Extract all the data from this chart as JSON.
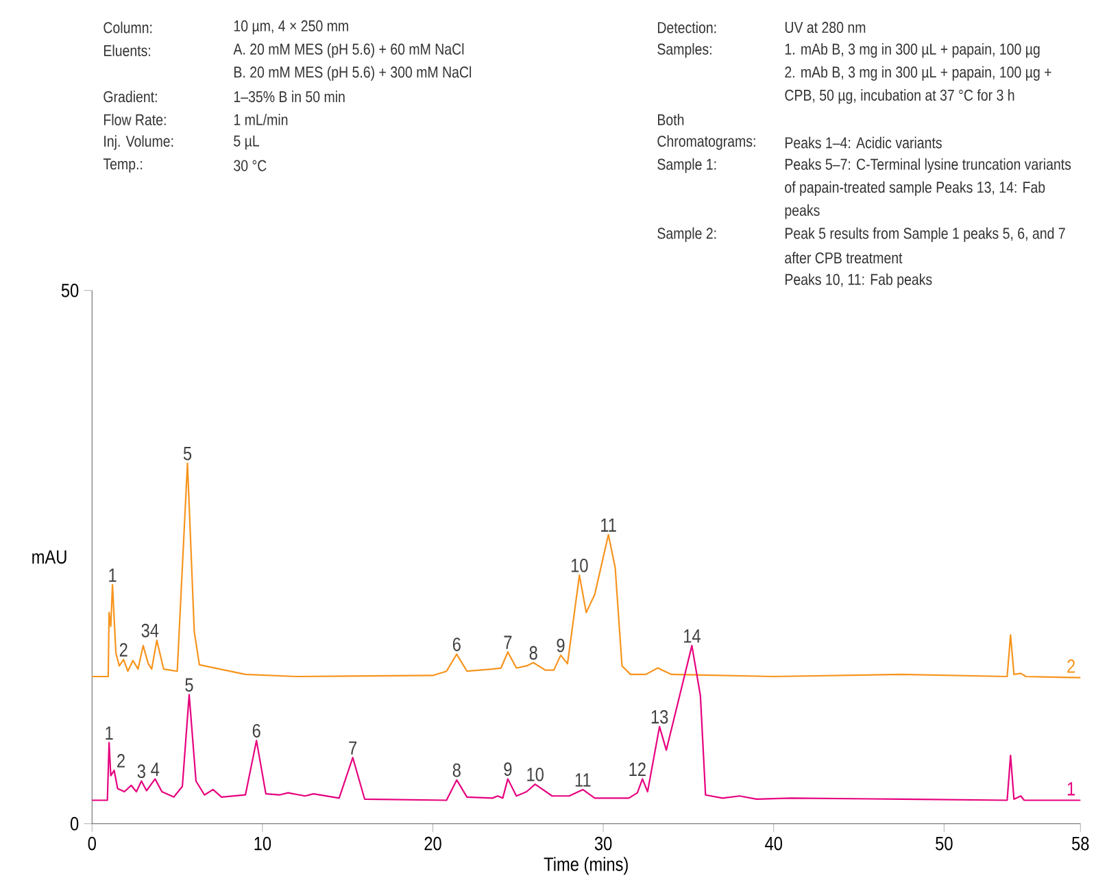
{
  "chart_data": {
    "type": "line",
    "xlabel": "Time (mins)",
    "ylabel": "mAU",
    "xlim": [
      0,
      58
    ],
    "xticks": [
      0,
      10,
      20,
      30,
      40,
      50,
      58
    ],
    "ylim": [
      0,
      50
    ],
    "yticks": [
      0,
      50
    ],
    "series": [
      {
        "name": "2",
        "color": "#f7941d",
        "x": [
          0,
          0.95,
          1.0,
          1.1,
          1.2,
          1.4,
          1.6,
          1.85,
          2.1,
          2.4,
          2.7,
          3.0,
          3.3,
          3.5,
          3.8,
          4.2,
          5.0,
          5.6,
          6.0,
          6.3,
          7.5,
          9.0,
          12,
          20.0,
          20.8,
          21.4,
          22.0,
          23.5,
          24.0,
          24.4,
          24.9,
          25.5,
          25.9,
          26.6,
          27.1,
          27.5,
          27.9,
          28.6,
          29.0,
          29.5,
          30.3,
          30.7,
          31.1,
          31.6,
          32.5,
          33.2,
          34,
          40,
          47.5,
          53.7,
          53.9,
          54.1,
          54.5,
          54.8,
          58
        ],
        "values": [
          13.8,
          13.8,
          19.8,
          18.5,
          22.4,
          16.0,
          14.8,
          15.4,
          14.3,
          15.3,
          14.5,
          16.7,
          15.0,
          14.5,
          17.2,
          14.5,
          14.3,
          33.8,
          18,
          14.9,
          14.5,
          14.0,
          13.8,
          13.9,
          14.3,
          15.9,
          14.3,
          14.5,
          14.6,
          16.1,
          14.6,
          14.8,
          15.1,
          14.4,
          14.4,
          15.8,
          15.0,
          23.3,
          19.8,
          21.5,
          27.1,
          24,
          14.8,
          14.0,
          14.0,
          14.6,
          14.0,
          13.8,
          14.0,
          13.8,
          17.7,
          14.0,
          14.1,
          13.8,
          13.7
        ]
      },
      {
        "name": "1",
        "color": "#e6007e",
        "x": [
          0,
          0.9,
          1.0,
          1.1,
          1.3,
          1.5,
          1.9,
          2.3,
          2.6,
          2.9,
          3.2,
          3.7,
          4.1,
          4.8,
          5.3,
          5.7,
          6.1,
          6.6,
          7.1,
          7.6,
          9.0,
          9.65,
          10.2,
          11.0,
          11.5,
          12.5,
          13.0,
          14.5,
          15.3,
          16.0,
          20.8,
          21.4,
          22.0,
          23.5,
          23.8,
          24.1,
          24.4,
          24.9,
          25.5,
          26.0,
          27.0,
          28.0,
          28.8,
          29.5,
          31.5,
          32.0,
          32.3,
          32.6,
          33.3,
          33.7,
          35.2,
          35.7,
          36.0,
          37.0,
          38.0,
          39,
          41,
          47.5,
          53.7,
          53.9,
          54.1,
          54.5,
          54.7,
          58
        ],
        "values": [
          2.2,
          2.2,
          7.6,
          4.5,
          5.0,
          3.3,
          3.0,
          3.6,
          3.0,
          4.0,
          3.1,
          4.2,
          3.0,
          2.5,
          3.5,
          12.1,
          4.0,
          2.7,
          3.2,
          2.5,
          2.7,
          7.8,
          2.8,
          2.7,
          2.9,
          2.6,
          2.8,
          2.4,
          6.2,
          2.3,
          2.2,
          4.1,
          2.5,
          2.4,
          2.6,
          2.4,
          4.2,
          2.6,
          3.0,
          3.7,
          2.6,
          2.6,
          3.2,
          2.4,
          2.4,
          2.9,
          4.2,
          3.0,
          9.1,
          6.9,
          16.7,
          12,
          2.7,
          2.4,
          2.6,
          2.3,
          2.4,
          2.3,
          2.2,
          6.4,
          2.3,
          2.6,
          2.2,
          2.2
        ]
      }
    ],
    "annotations": [
      "Column:",
      "10 µm, 4 × 250 mm",
      "Eluents:",
      "A. 20 mM MES (pH 5.6) + 60 mM NaCl",
      "B. 20 mM MES (pH 5.6) + 300 mM NaCl",
      "Gradient:",
      "1–35% B in 50 min",
      "Flow Rate:",
      "1 mL/min",
      "Inj. Volume:",
      "5 µL",
      "Temp.:",
      "30 °C",
      "Detection:",
      "UV at 280 nm",
      "Samples:",
      "1. mAb B, 3 mg in 300 µL + papain, 100 µg",
      "2. mAb B, 3 mg in 300 µL + papain, 100 µg +",
      "CPB, 50 µg, incubation at 37 °C for 3 h",
      "Both",
      "Chromatograms:",
      "Peaks 1–4: Acidic variants",
      "Sample 1:",
      "Peaks 5–7: C-Terminal lysine truncation variants",
      "of papain-treated sample Peaks 13, 14: Fab",
      "peaks",
      "Sample 2:",
      "Peak 5 results from Sample 1 peaks 5, 6, and 7",
      "after CPB treatment",
      "Peaks 10, 11: Fab peaks",
      {
        "text": "1",
        "x": 1.2,
        "y": 22.4
      },
      {
        "text": "2",
        "x": 1.85,
        "y": 15.4
      },
      {
        "text": "34",
        "x": 3.4,
        "y": 17.2
      },
      {
        "text": "5",
        "x": 5.6,
        "y": 33.8
      },
      {
        "text": "6",
        "x": 21.4,
        "y": 15.9
      },
      {
        "text": "7",
        "x": 24.4,
        "y": 16.1
      },
      {
        "text": "8",
        "x": 25.9,
        "y": 15.1
      },
      {
        "text": "9",
        "x": 27.5,
        "y": 15.8
      },
      {
        "text": "10",
        "x": 28.6,
        "y": 23.3
      },
      {
        "text": "11",
        "x": 30.3,
        "y": 27.1
      },
      {
        "text": "1",
        "x": 1.0,
        "y": 7.6
      },
      {
        "text": "2",
        "x": 1.7,
        "y": 5.0
      },
      {
        "text": "3",
        "x": 2.9,
        "y": 4.0
      },
      {
        "text": "4",
        "x": 3.7,
        "y": 4.2
      },
      {
        "text": "5",
        "x": 5.7,
        "y": 12.1
      },
      {
        "text": "6",
        "x": 9.65,
        "y": 7.8
      },
      {
        "text": "7",
        "x": 15.3,
        "y": 6.2
      },
      {
        "text": "8",
        "x": 21.4,
        "y": 4.1
      },
      {
        "text": "9",
        "x": 24.4,
        "y": 4.2
      },
      {
        "text": "10",
        "x": 26.0,
        "y": 3.7
      },
      {
        "text": "11",
        "x": 28.8,
        "y": 3.2
      },
      {
        "text": "12",
        "x": 32.0,
        "y": 4.2
      },
      {
        "text": "13",
        "x": 33.3,
        "y": 9.1
      },
      {
        "text": "14",
        "x": 35.2,
        "y": 16.7
      }
    ]
  }
}
